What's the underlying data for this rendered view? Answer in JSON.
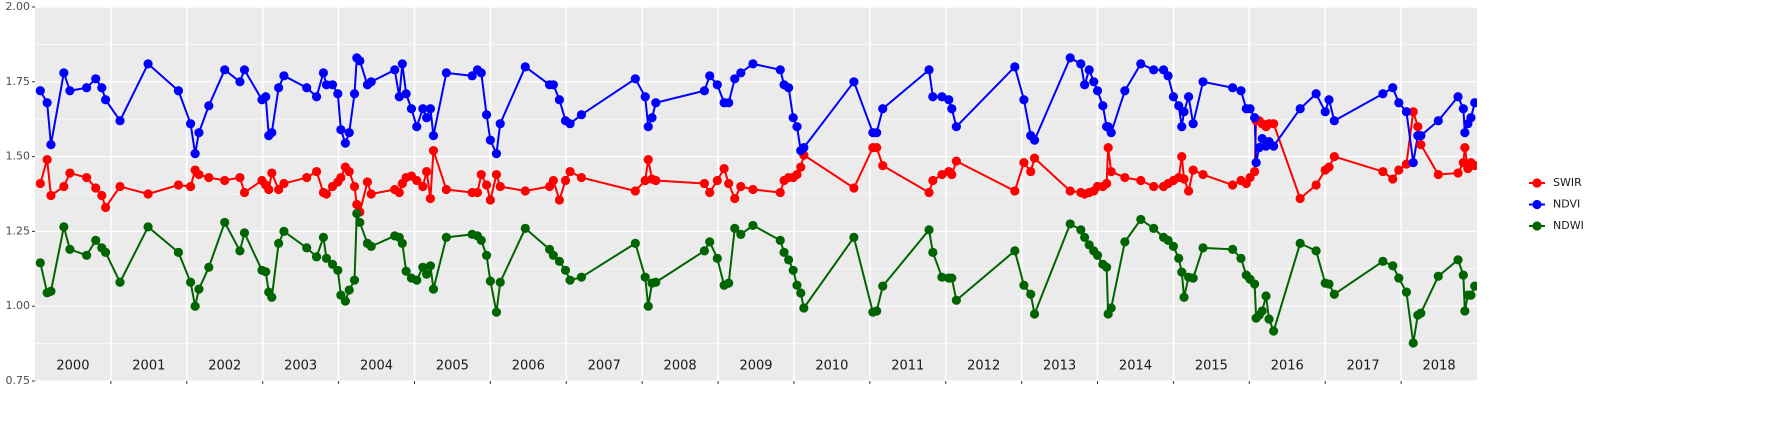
{
  "chart_data": {
    "type": "line",
    "x": [
      2000.07,
      2000.16,
      2000.21,
      2000.38,
      2000.46,
      2000.68,
      2000.8,
      2000.88,
      2000.93,
      2001.12,
      2001.49,
      2001.89,
      2002.05,
      2002.11,
      2002.16,
      2002.29,
      2002.5,
      2002.7,
      2002.76,
      2002.99,
      2003.04,
      2003.08,
      2003.12,
      2003.21,
      2003.28,
      2003.58,
      2003.71,
      2003.8,
      2003.84,
      2003.92,
      2003.99,
      2004.03,
      2004.09,
      2004.14,
      2004.21,
      2004.24,
      2004.28,
      2004.38,
      2004.43,
      2004.74,
      2004.8,
      2004.84,
      2004.89,
      2004.96,
      2005.03,
      2005.11,
      2005.16,
      2005.21,
      2005.25,
      2005.42,
      2005.76,
      2005.83,
      2005.88,
      2005.95,
      2006.0,
      2006.08,
      2006.13,
      2006.46,
      2006.78,
      2006.83,
      2006.91,
      2006.99,
      2007.05,
      2007.2,
      2007.91,
      2008.04,
      2008.08,
      2008.13,
      2008.18,
      2008.82,
      2008.89,
      2008.99,
      2009.08,
      2009.14,
      2009.22,
      2009.3,
      2009.46,
      2009.82,
      2009.87,
      2009.93,
      2009.99,
      2010.04,
      2010.09,
      2010.13,
      2010.79,
      2011.04,
      2011.09,
      2011.17,
      2011.78,
      2011.83,
      2011.95,
      2012.04,
      2012.08,
      2012.14,
      2012.91,
      2013.03,
      2013.12,
      2013.17,
      2013.64,
      2013.78,
      2013.83,
      2013.89,
      2013.95,
      2014.0,
      2014.07,
      2014.12,
      2014.14,
      2014.18,
      2014.36,
      2014.57,
      2014.74,
      2014.87,
      2014.93,
      2015.0,
      2015.07,
      2015.11,
      2015.14,
      2015.2,
      2015.26,
      2015.39,
      2015.78,
      2015.89,
      2015.96,
      2016.01,
      2016.07,
      2016.09,
      2016.13,
      2016.17,
      2016.22,
      2016.26,
      2016.32,
      2016.67,
      2016.88,
      2017.0,
      2017.05,
      2017.12,
      2017.76,
      2017.89,
      2017.97,
      2018.07,
      2018.16,
      2018.22,
      2018.26,
      2018.49,
      2018.75,
      2018.82,
      2018.84,
      2018.88,
      2018.92,
      2018.97
    ],
    "series": [
      {
        "name": "SWIR",
        "color": "#ff0000",
        "values": [
          1.41,
          1.49,
          1.37,
          1.4,
          1.445,
          1.43,
          1.395,
          1.37,
          1.33,
          1.4,
          1.375,
          1.405,
          1.4,
          1.455,
          1.44,
          1.43,
          1.42,
          1.43,
          1.38,
          1.42,
          1.405,
          1.39,
          1.445,
          1.39,
          1.41,
          1.43,
          1.45,
          1.38,
          1.375,
          1.4,
          1.415,
          1.43,
          1.465,
          1.45,
          1.4,
          1.34,
          1.315,
          1.415,
          1.375,
          1.39,
          1.38,
          1.41,
          1.43,
          1.435,
          1.42,
          1.4,
          1.45,
          1.36,
          1.52,
          1.39,
          1.38,
          1.38,
          1.44,
          1.405,
          1.355,
          1.44,
          1.4,
          1.385,
          1.4,
          1.42,
          1.355,
          1.42,
          1.45,
          1.43,
          1.385,
          1.42,
          1.49,
          1.425,
          1.42,
          1.41,
          1.38,
          1.42,
          1.46,
          1.41,
          1.36,
          1.4,
          1.39,
          1.38,
          1.42,
          1.43,
          1.43,
          1.44,
          1.465,
          1.505,
          1.395,
          1.53,
          1.53,
          1.47,
          1.38,
          1.42,
          1.44,
          1.45,
          1.44,
          1.485,
          1.385,
          1.48,
          1.45,
          1.495,
          1.385,
          1.38,
          1.375,
          1.38,
          1.385,
          1.4,
          1.4,
          1.41,
          1.53,
          1.45,
          1.43,
          1.42,
          1.4,
          1.4,
          1.41,
          1.42,
          1.43,
          1.5,
          1.425,
          1.385,
          1.455,
          1.44,
          1.405,
          1.42,
          1.41,
          1.43,
          1.45,
          1.62,
          1.62,
          1.61,
          1.6,
          1.61,
          1.61,
          1.36,
          1.405,
          1.455,
          1.465,
          1.5,
          1.45,
          1.425,
          1.455,
          1.475,
          1.65,
          1.6,
          1.54,
          1.44,
          1.445,
          1.48,
          1.53,
          1.46,
          1.48,
          1.47
        ]
      },
      {
        "name": "NDVI",
        "color": "#0000ff",
        "values": [
          1.72,
          1.68,
          1.54,
          1.78,
          1.72,
          1.73,
          1.76,
          1.73,
          1.69,
          1.62,
          1.81,
          1.72,
          1.61,
          1.51,
          1.58,
          1.67,
          1.79,
          1.75,
          1.79,
          1.69,
          1.7,
          1.57,
          1.58,
          1.73,
          1.77,
          1.73,
          1.7,
          1.78,
          1.74,
          1.74,
          1.71,
          1.59,
          1.545,
          1.58,
          1.71,
          1.83,
          1.82,
          1.74,
          1.75,
          1.79,
          1.7,
          1.81,
          1.71,
          1.66,
          1.6,
          1.66,
          1.63,
          1.66,
          1.57,
          1.78,
          1.77,
          1.79,
          1.78,
          1.64,
          1.555,
          1.51,
          1.61,
          1.8,
          1.74,
          1.74,
          1.69,
          1.62,
          1.61,
          1.64,
          1.76,
          1.7,
          1.6,
          1.63,
          1.68,
          1.72,
          1.77,
          1.74,
          1.68,
          1.68,
          1.76,
          1.78,
          1.81,
          1.79,
          1.74,
          1.73,
          1.63,
          1.6,
          1.52,
          1.53,
          1.75,
          1.58,
          1.58,
          1.66,
          1.79,
          1.7,
          1.7,
          1.69,
          1.66,
          1.6,
          1.8,
          1.69,
          1.57,
          1.555,
          1.83,
          1.81,
          1.74,
          1.79,
          1.75,
          1.72,
          1.67,
          1.6,
          1.6,
          1.58,
          1.72,
          1.81,
          1.79,
          1.79,
          1.77,
          1.7,
          1.67,
          1.6,
          1.65,
          1.7,
          1.61,
          1.75,
          1.73,
          1.72,
          1.66,
          1.66,
          1.63,
          1.48,
          1.53,
          1.56,
          1.535,
          1.55,
          1.535,
          1.66,
          1.71,
          1.65,
          1.69,
          1.62,
          1.71,
          1.73,
          1.68,
          1.65,
          1.48,
          1.57,
          1.57,
          1.62,
          1.7,
          1.66,
          1.58,
          1.61,
          1.63,
          1.68
        ]
      },
      {
        "name": "NDWI",
        "color": "#006400",
        "values": [
          1.145,
          1.045,
          1.05,
          1.265,
          1.19,
          1.17,
          1.22,
          1.195,
          1.18,
          1.08,
          1.265,
          1.18,
          1.08,
          1.0,
          1.057,
          1.13,
          1.28,
          1.185,
          1.245,
          1.12,
          1.115,
          1.047,
          1.03,
          1.21,
          1.25,
          1.195,
          1.165,
          1.23,
          1.16,
          1.14,
          1.12,
          1.037,
          1.017,
          1.054,
          1.087,
          1.31,
          1.28,
          1.21,
          1.2,
          1.235,
          1.23,
          1.21,
          1.117,
          1.094,
          1.087,
          1.13,
          1.107,
          1.135,
          1.057,
          1.23,
          1.24,
          1.235,
          1.22,
          1.17,
          1.084,
          0.98,
          1.08,
          1.26,
          1.19,
          1.17,
          1.15,
          1.12,
          1.087,
          1.097,
          1.21,
          1.097,
          1.0,
          1.077,
          1.08,
          1.185,
          1.215,
          1.16,
          1.07,
          1.077,
          1.26,
          1.24,
          1.27,
          1.22,
          1.18,
          1.155,
          1.12,
          1.07,
          1.044,
          0.994,
          1.23,
          0.98,
          0.984,
          1.067,
          1.255,
          1.18,
          1.097,
          1.094,
          1.094,
          1.02,
          1.185,
          1.07,
          1.04,
          0.974,
          1.275,
          1.255,
          1.23,
          1.205,
          1.185,
          1.17,
          1.14,
          1.13,
          0.974,
          0.994,
          1.215,
          1.29,
          1.26,
          1.23,
          1.22,
          1.2,
          1.16,
          1.114,
          1.03,
          1.097,
          1.094,
          1.195,
          1.19,
          1.16,
          1.104,
          1.09,
          1.074,
          0.96,
          0.97,
          0.984,
          1.034,
          0.957,
          0.917,
          1.21,
          1.185,
          1.077,
          1.074,
          1.04,
          1.15,
          1.135,
          1.094,
          1.047,
          0.877,
          0.97,
          0.977,
          1.1,
          1.155,
          1.104,
          0.984,
          1.037,
          1.037,
          1.067
        ]
      }
    ],
    "xlim": [
      2000,
      2019
    ],
    "xticks": [
      2001,
      2002,
      2003,
      2004,
      2005,
      2006,
      2007,
      2008,
      2009,
      2010,
      2011,
      2012,
      2013,
      2014,
      2015,
      2016,
      2017,
      2018
    ],
    "year_labels": [
      {
        "value": 2000.5,
        "label": "2000"
      },
      {
        "value": 2001.5,
        "label": "2001"
      },
      {
        "value": 2002.5,
        "label": "2002"
      },
      {
        "value": 2003.5,
        "label": "2003"
      },
      {
        "value": 2004.5,
        "label": "2004"
      },
      {
        "value": 2005.5,
        "label": "2005"
      },
      {
        "value": 2006.5,
        "label": "2006"
      },
      {
        "value": 2007.5,
        "label": "2007"
      },
      {
        "value": 2008.5,
        "label": "2008"
      },
      {
        "value": 2009.5,
        "label": "2009"
      },
      {
        "value": 2010.5,
        "label": "2010"
      },
      {
        "value": 2011.5,
        "label": "2011"
      },
      {
        "value": 2012.5,
        "label": "2012"
      },
      {
        "value": 2013.5,
        "label": "2013"
      },
      {
        "value": 2014.5,
        "label": "2014"
      },
      {
        "value": 2015.5,
        "label": "2015"
      },
      {
        "value": 2016.5,
        "label": "2016"
      },
      {
        "value": 2017.5,
        "label": "2017"
      },
      {
        "value": 2018.5,
        "label": "2018"
      }
    ],
    "ylim": [
      0.75,
      2.0
    ],
    "yticks": [
      0.75,
      {
        "value": 1.0,
        "label": "1.00"
      },
      1.25,
      {
        "value": 1.5,
        "label": "1.50"
      },
      1.75,
      {
        "value": 2.0,
        "label": "2.00"
      }
    ],
    "yminor": [
      0.875,
      1.125,
      1.375,
      1.625,
      1.875
    ],
    "grid": true,
    "legend": "right"
  }
}
